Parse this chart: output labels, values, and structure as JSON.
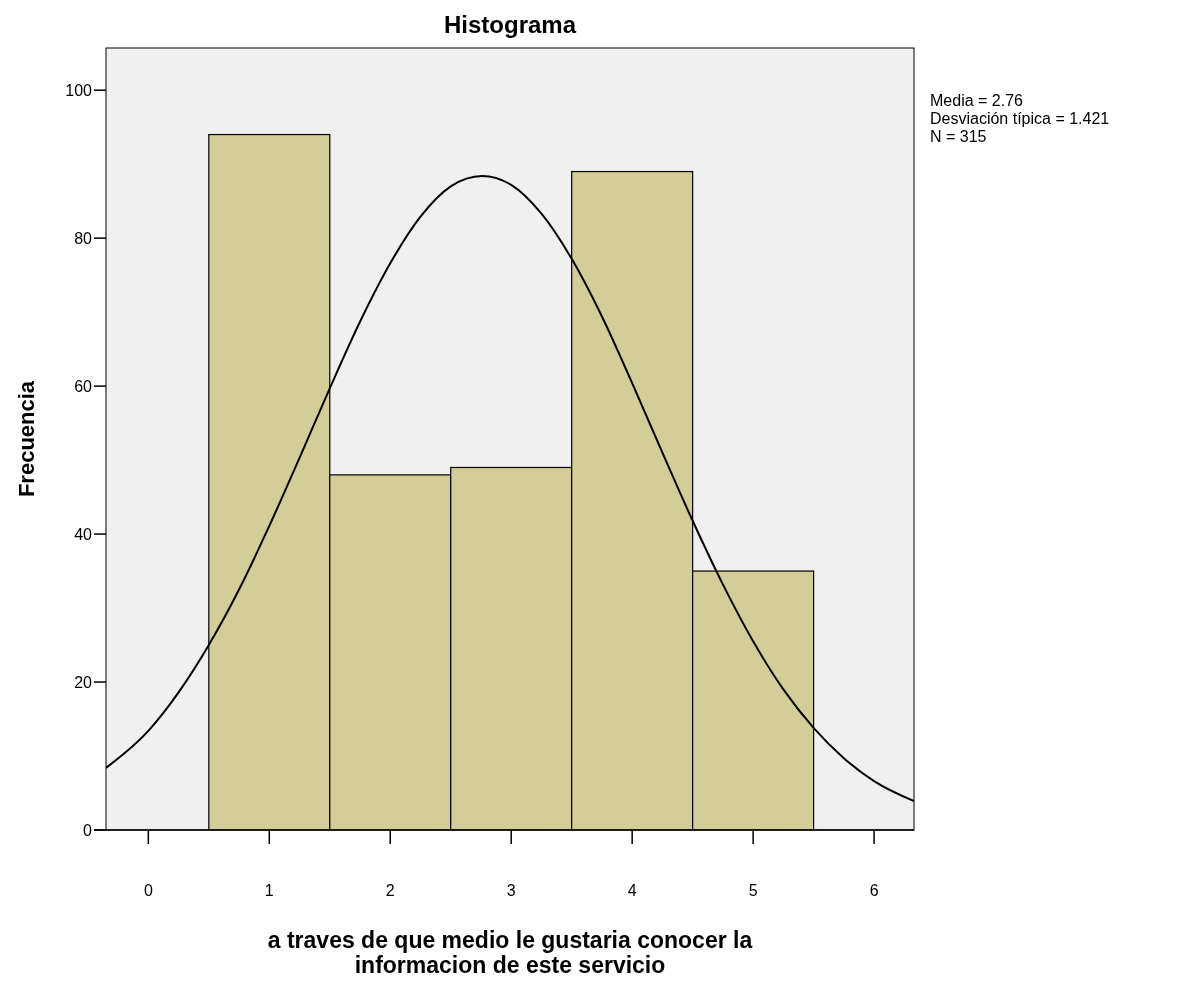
{
  "chart_data": {
    "type": "histogram",
    "title": "Histograma",
    "xlabel": "a traves de que medio le gustaria conocer la informacion de este servicio",
    "ylabel": "Frecuencia",
    "bins": [
      0.5,
      1.5,
      2.5,
      3.5,
      4.5,
      5.5
    ],
    "values": [
      94,
      48,
      49,
      89,
      35
    ],
    "color": "#d3ce97",
    "series": [
      {
        "type": "line",
        "color": "#000000",
        "x": [
          -0.35,
          0,
          0.25,
          0.5,
          0.75,
          1,
          1.25,
          1.5,
          1.75,
          2,
          2.25,
          2.5,
          2.76,
          3,
          3.25,
          3.5,
          3.75,
          4,
          4.25,
          4.5,
          4.75,
          5,
          5.25,
          5.5,
          5.75,
          6,
          6.33
        ],
        "values": [
          8.4,
          13.4,
          18.6,
          25,
          32.5,
          41.1,
          50.3,
          59.7,
          68.7,
          76.6,
          82.9,
          87,
          88.4,
          87.2,
          83.3,
          77.2,
          69.4,
          60.4,
          51,
          41.8,
          33.2,
          25.5,
          19,
          13.8,
          9.7,
          6.6,
          3.9
        ]
      }
    ],
    "xlim": [
      -0.35,
      6.33
    ],
    "xticks": [
      0,
      1,
      2,
      3,
      4,
      5,
      6
    ],
    "ylim": [
      0,
      105.7
    ],
    "yticks": [
      0,
      20,
      40,
      60,
      80,
      100
    ],
    "annotations": [
      "Media = 2.76",
      "Desviación típica = 1.421",
      "N = 315"
    ],
    "grid": false
  }
}
